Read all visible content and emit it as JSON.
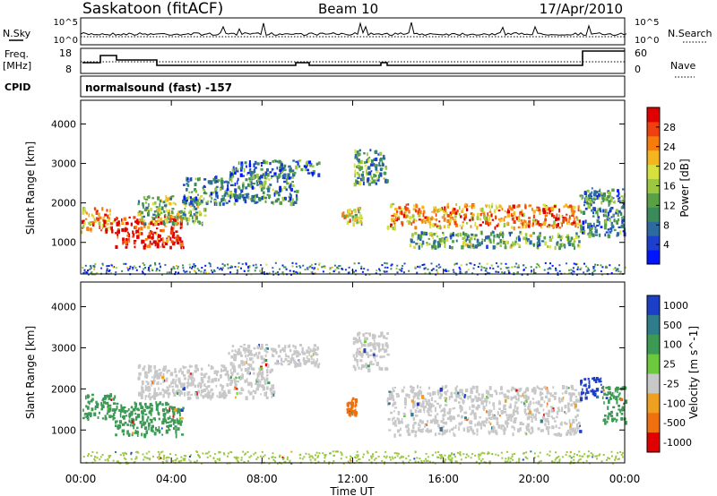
{
  "header": {
    "station": "Saskatoon (fitACF)",
    "beam": "Beam 10",
    "date": "17/Apr/2010"
  },
  "strip_labels": {
    "nsky": "N.Sky",
    "nsky_top": "10^5",
    "nsky_bottom": "10^0",
    "nsearch": "N.Search",
    "nsearch_top": "10^5",
    "nsearch_bottom": "10^0",
    "freq": "Freq.",
    "freq_unit": "[MHz]",
    "freq_top": "18",
    "freq_bottom": "8",
    "nave": "Nave",
    "nave_top": "60",
    "nave_bottom": "0",
    "cpid": "CPID",
    "cpid_value": "normalsound (fast) -157"
  },
  "chart_data": [
    {
      "type": "heatmap",
      "panel": "power",
      "ylabel": "Slant Range [km]",
      "yticks": [
        "1000",
        "2000",
        "3000",
        "4000"
      ],
      "colorbar_label": "Power [dB]",
      "colorbar_ticks": [
        "4",
        "8",
        "12",
        "16",
        "20",
        "24",
        "28"
      ],
      "colorbar_colors": [
        "#0015ff",
        "#1c3fd0",
        "#2c6aa0",
        "#3a8a5a",
        "#5aa045",
        "#9cc840",
        "#d8e040",
        "#f5b51e",
        "#f77c0c",
        "#f04010",
        "#e00000"
      ],
      "ylim": [
        200,
        4600
      ],
      "regions": [
        {
          "x": [
            0.0,
            1.5
          ],
          "y": [
            1300,
            1900
          ],
          "level": 0.75
        },
        {
          "x": [
            1.5,
            4.5
          ],
          "y": [
            900,
            1700
          ],
          "level": 0.95
        },
        {
          "x": [
            2.5,
            5.5
          ],
          "y": [
            1500,
            2200
          ],
          "level": 0.45
        },
        {
          "x": [
            4.5,
            9.5
          ],
          "y": [
            2000,
            2700
          ],
          "level": 0.3
        },
        {
          "x": [
            6.5,
            10.5
          ],
          "y": [
            2700,
            3100
          ],
          "level": 0.25
        },
        {
          "x": [
            11.5,
            12.5
          ],
          "y": [
            1500,
            1900
          ],
          "level": 0.6
        },
        {
          "x": [
            12.0,
            13.5
          ],
          "y": [
            2500,
            3400
          ],
          "level": 0.35
        },
        {
          "x": [
            13.5,
            22.0
          ],
          "y": [
            1400,
            2000
          ],
          "level": 0.75
        },
        {
          "x": [
            14.5,
            22.0
          ],
          "y": [
            900,
            1300
          ],
          "level": 0.4
        },
        {
          "x": [
            22.0,
            24.0
          ],
          "y": [
            1200,
            2400
          ],
          "level": 0.3
        }
      ]
    },
    {
      "type": "heatmap",
      "panel": "velocity",
      "xlabel": "Time UT",
      "ylabel": "Slant Range [km]",
      "xticks": [
        "00:00",
        "04:00",
        "08:00",
        "12:00",
        "16:00",
        "20:00",
        "00:00"
      ],
      "yticks": [
        "1000",
        "2000",
        "3000",
        "4000"
      ],
      "colorbar_label": "Velocity [m s^-1]",
      "colorbar_ticks": [
        "1000",
        "500",
        "100",
        "25",
        "-25",
        "-100",
        "-500",
        "-1000"
      ],
      "colorbar_colors": [
        "#1d3fc8",
        "#2f7d8a",
        "#3c9a55",
        "#6cc83c",
        "#c8c8c8",
        "#f0a020",
        "#f07010",
        "#e00000"
      ],
      "ylim": [
        200,
        4600
      ],
      "regions": [
        {
          "x": [
            0.0,
            1.5
          ],
          "y": [
            1300,
            1900
          ],
          "color": "#3c9a55"
        },
        {
          "x": [
            1.5,
            4.5
          ],
          "y": [
            900,
            1700
          ],
          "color": "#3c9a55"
        },
        {
          "x": [
            2.5,
            8.5
          ],
          "y": [
            1800,
            2600
          ],
          "color": "#c8c8c8"
        },
        {
          "x": [
            6.5,
            10.5
          ],
          "y": [
            2600,
            3100
          ],
          "color": "#c8c8c8"
        },
        {
          "x": [
            11.7,
            12.1
          ],
          "y": [
            1400,
            1800
          ],
          "color": "#f07010"
        },
        {
          "x": [
            12.0,
            13.5
          ],
          "y": [
            2500,
            3400
          ],
          "color": "#c8c8c8"
        },
        {
          "x": [
            13.5,
            22.0
          ],
          "y": [
            900,
            2100
          ],
          "color": "#c8c8c8"
        },
        {
          "x": [
            22.0,
            23.0
          ],
          "y": [
            1800,
            2300
          ],
          "color": "#1d3fc8"
        },
        {
          "x": [
            23.0,
            24.0
          ],
          "y": [
            1200,
            2100
          ],
          "color": "#3c9a55"
        }
      ]
    }
  ]
}
